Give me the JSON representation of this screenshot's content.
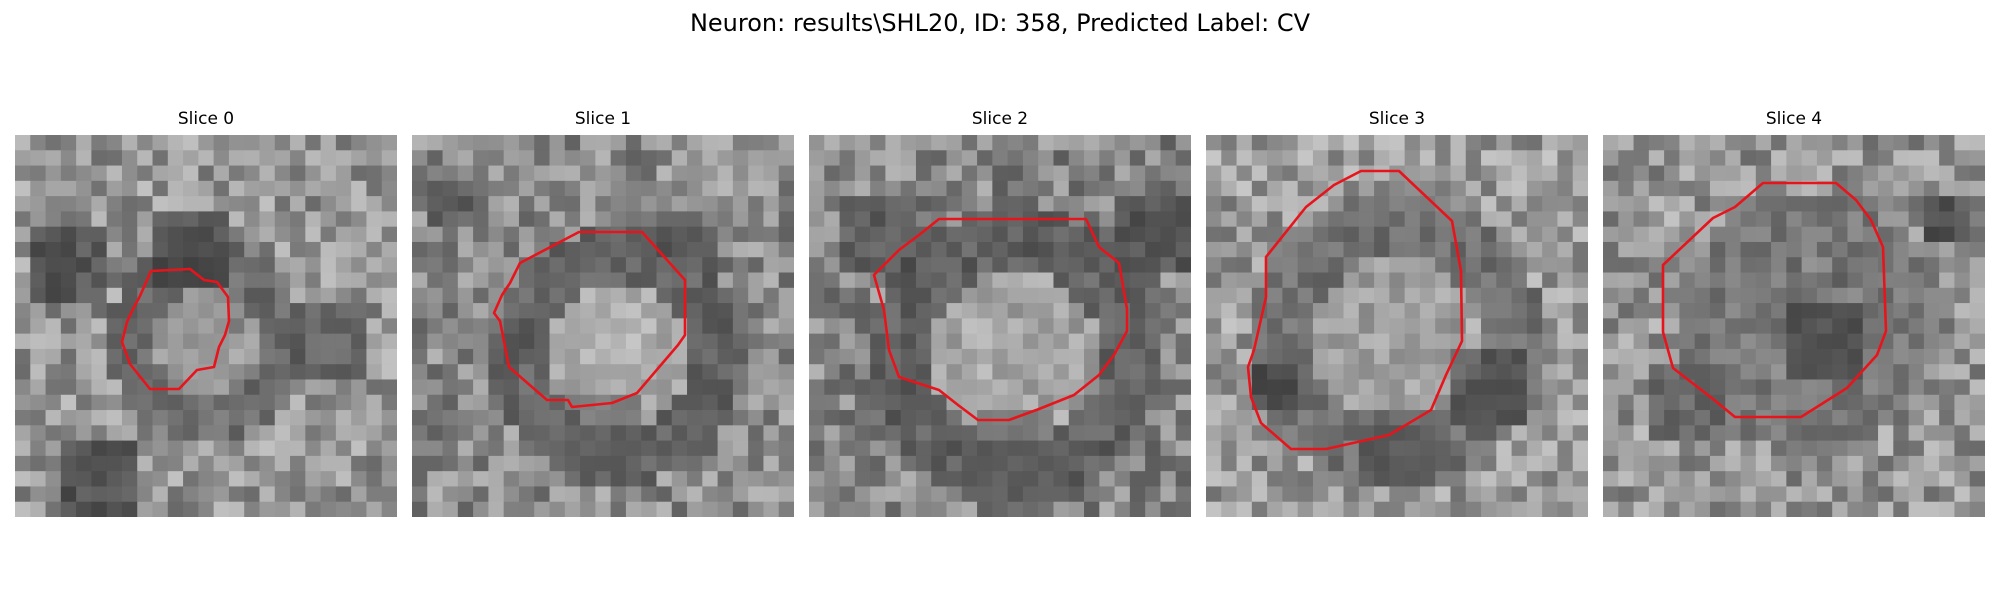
{
  "title": "Neuron: results\\SHL20, ID: 358, Predicted Label: CV",
  "colors": {
    "contour": "#e8141c",
    "background": "#ffffff"
  },
  "panels": [
    {
      "title": "Slice 0"
    },
    {
      "title": "Slice 1"
    },
    {
      "title": "Slice 2"
    },
    {
      "title": "Slice 3"
    },
    {
      "title": "Slice 4"
    }
  ]
}
